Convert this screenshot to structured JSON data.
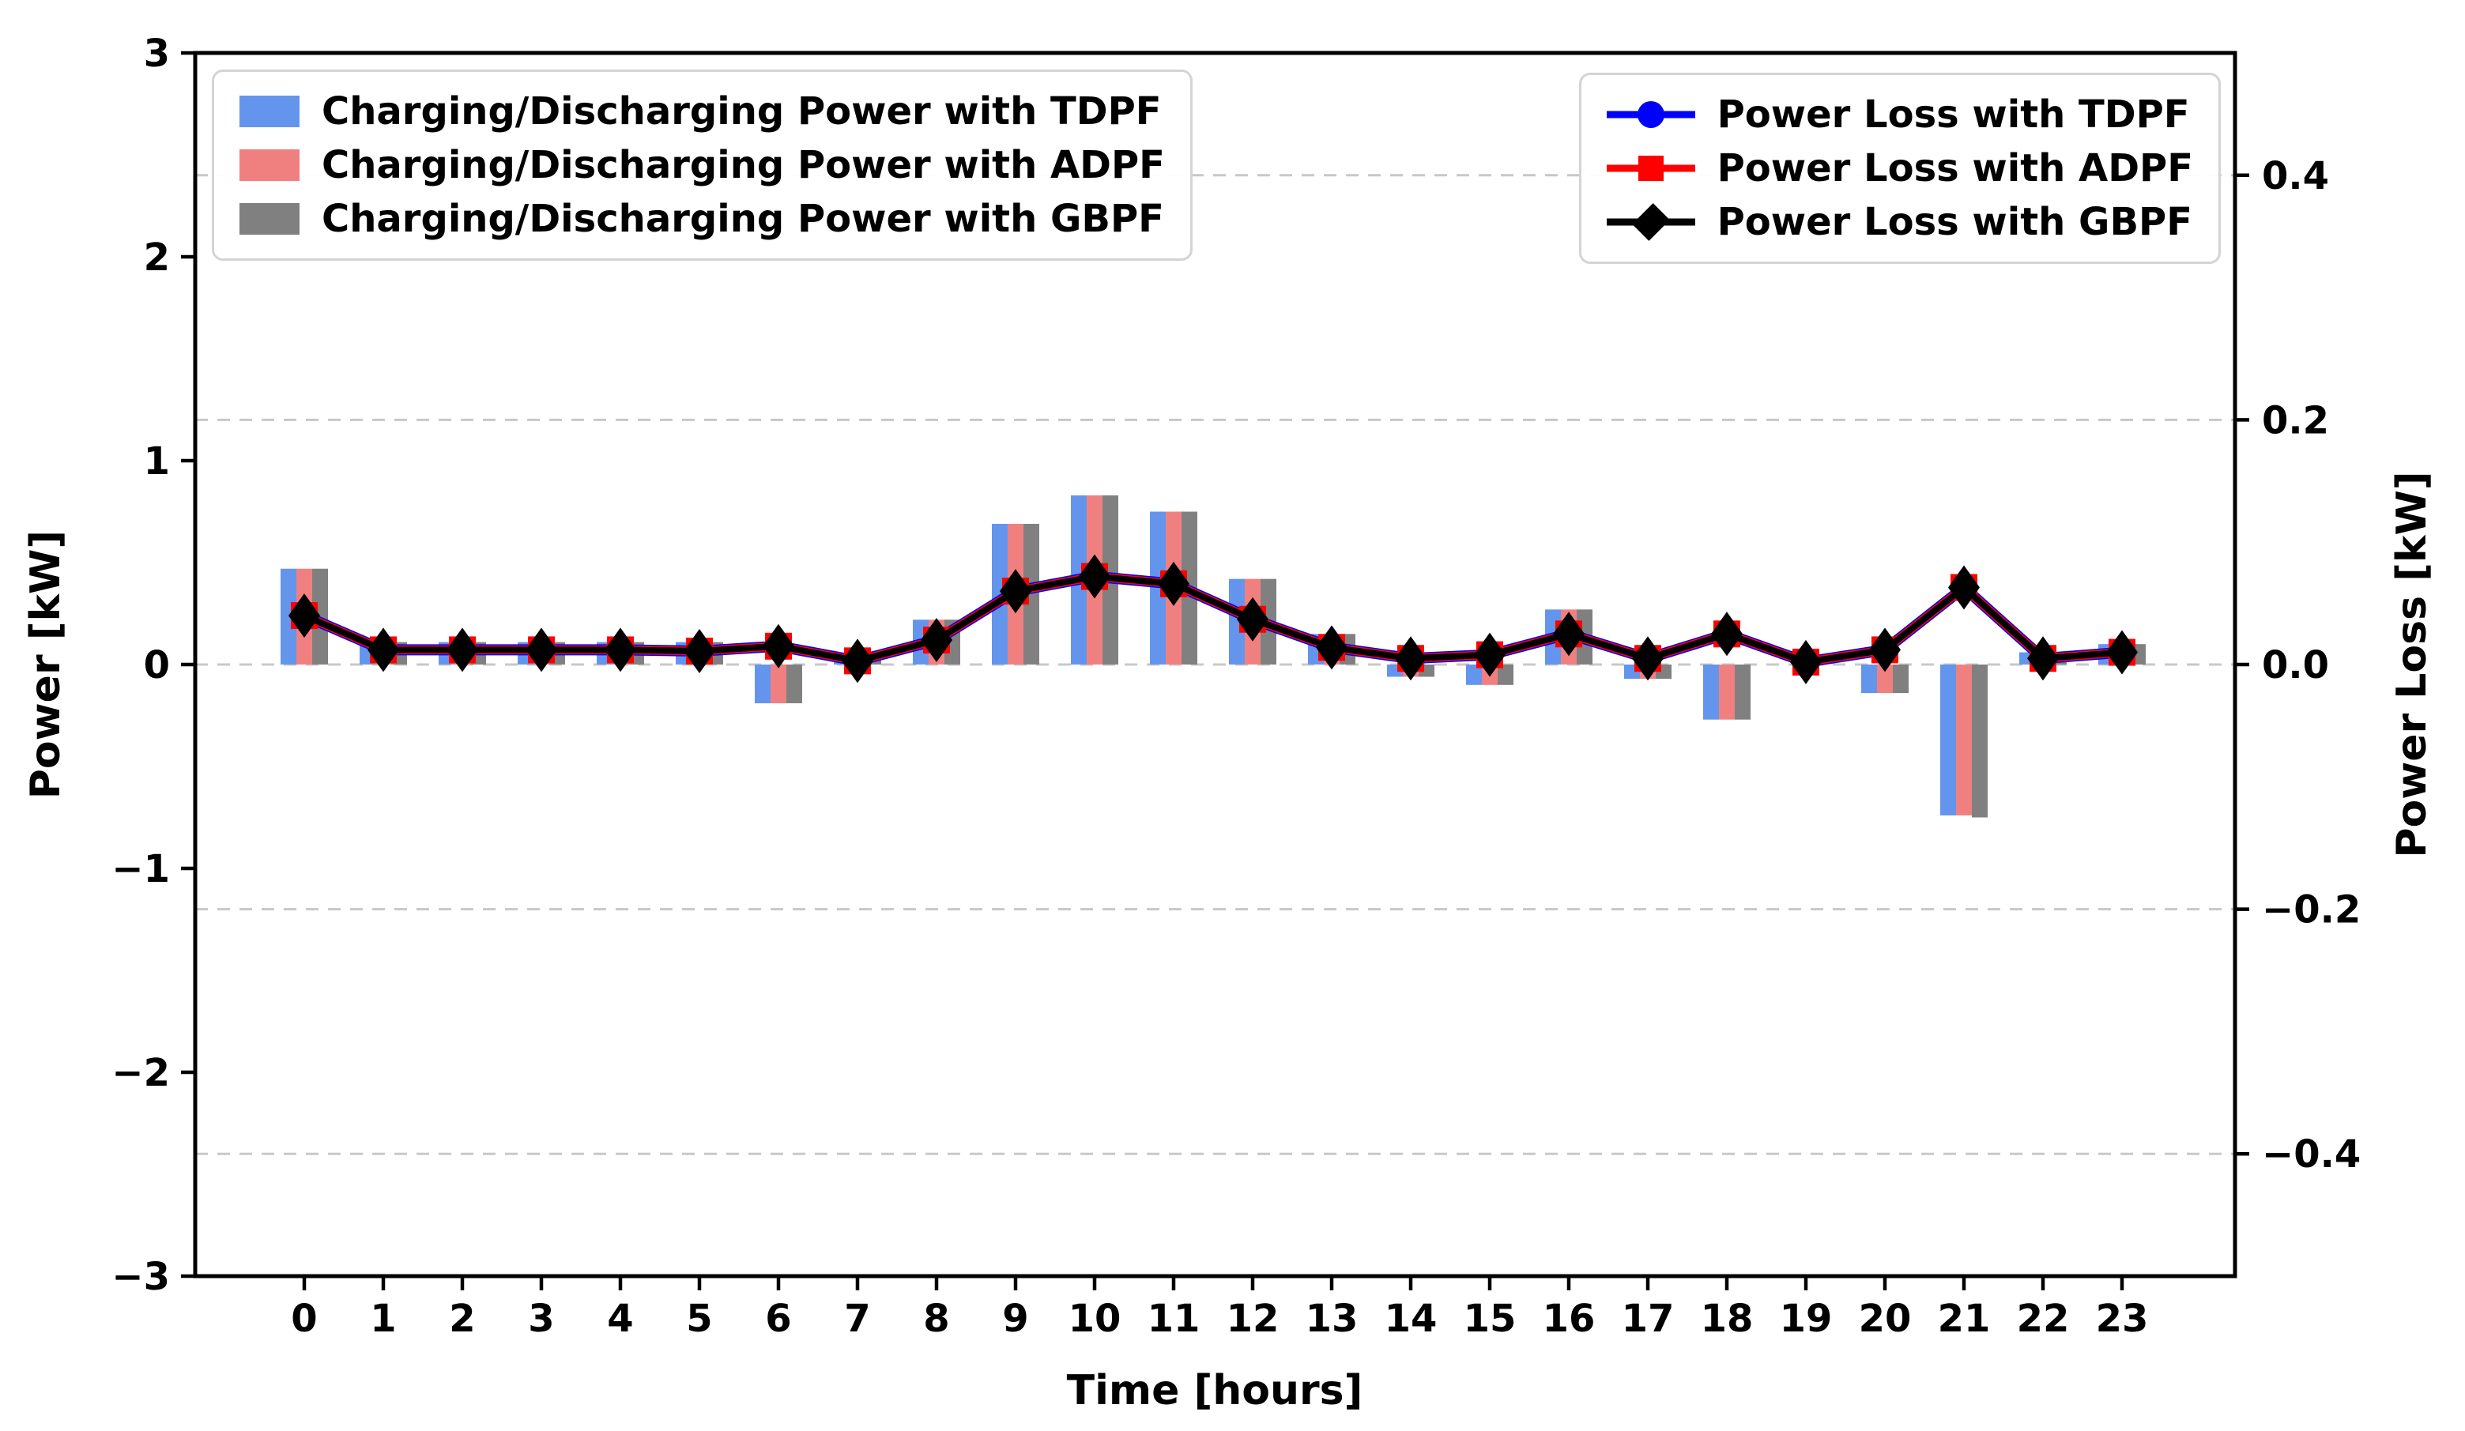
{
  "axes": {
    "x_label": "Time [hours]",
    "y_left_label": "Power [kW]",
    "y_right_label": "Power Loss [kW]",
    "x_ticks": [
      "0",
      "1",
      "2",
      "3",
      "4",
      "5",
      "6",
      "7",
      "8",
      "9",
      "10",
      "11",
      "12",
      "13",
      "14",
      "15",
      "16",
      "17",
      "18",
      "19",
      "20",
      "21",
      "22",
      "23"
    ],
    "y_left_ticks": [
      {
        "v": 3,
        "label": "3"
      },
      {
        "v": 2,
        "label": "2"
      },
      {
        "v": 1,
        "label": "1"
      },
      {
        "v": 0,
        "label": "0"
      },
      {
        "v": -1,
        "label": "−1"
      },
      {
        "v": -2,
        "label": "−2"
      },
      {
        "v": -3,
        "label": "−3"
      }
    ],
    "y_right_ticks": [
      {
        "v": 0.4,
        "label": "0.4"
      },
      {
        "v": 0.2,
        "label": "0.2"
      },
      {
        "v": 0.0,
        "label": "0.0"
      },
      {
        "v": -0.2,
        "label": "−0.2"
      },
      {
        "v": -0.4,
        "label": "−0.4"
      }
    ],
    "grid_color": "#c8c8c8",
    "spine_color": "#000000"
  },
  "chart_data": {
    "type": "bar+line",
    "categories": [
      0,
      1,
      2,
      3,
      4,
      5,
      6,
      7,
      8,
      9,
      10,
      11,
      12,
      13,
      14,
      15,
      16,
      17,
      18,
      19,
      20,
      21,
      22,
      23
    ],
    "xlabel": "Time [hours]",
    "ylabel_left": "Power [kW]",
    "ylabel_right": "Power Loss [kW]",
    "ylim_left": [
      -3,
      3
    ],
    "ylim_right": [
      -0.5,
      0.5
    ],
    "grid": "horizontal dashed lines at right-axis ticks 0.4, 0.2, 0.0, -0.2, -0.4",
    "legend_positions": [
      "upper left (bars)",
      "upper right (lines)"
    ],
    "bar_series": [
      {
        "name": "Charging/Discharging Power with TDPF",
        "color": "#6495ED",
        "values": [
          0.47,
          0.11,
          0.11,
          0.11,
          0.11,
          0.11,
          -0.19,
          0.02,
          0.22,
          0.69,
          0.83,
          0.75,
          0.42,
          0.15,
          -0.06,
          -0.1,
          0.27,
          -0.07,
          -0.27,
          0.0,
          -0.14,
          -0.74,
          0.06,
          0.1
        ]
      },
      {
        "name": "Charging/Discharging Power with ADPF",
        "color": "#F08080",
        "values": [
          0.47,
          0.11,
          0.11,
          0.11,
          0.11,
          0.11,
          -0.19,
          0.02,
          0.22,
          0.69,
          0.83,
          0.75,
          0.42,
          0.15,
          -0.06,
          -0.1,
          0.27,
          -0.07,
          -0.27,
          0.0,
          -0.14,
          -0.74,
          0.05,
          0.1
        ]
      },
      {
        "name": "Charging/Discharging Power with GBPF",
        "color": "#808080",
        "values": [
          0.47,
          0.11,
          0.11,
          0.11,
          0.11,
          0.11,
          -0.19,
          0.02,
          0.22,
          0.69,
          0.83,
          0.75,
          0.42,
          0.15,
          -0.06,
          -0.1,
          0.27,
          -0.07,
          -0.27,
          0.0,
          -0.14,
          -0.75,
          0.05,
          0.1
        ]
      }
    ],
    "line_series": [
      {
        "name": "Power Loss with TDPF",
        "color": "#0000FF",
        "marker": "circle",
        "values": [
          0.04,
          0.012,
          0.012,
          0.012,
          0.012,
          0.011,
          0.015,
          0.003,
          0.02,
          0.06,
          0.072,
          0.066,
          0.037,
          0.014,
          0.005,
          0.008,
          0.025,
          0.005,
          0.025,
          0.002,
          0.012,
          0.063,
          0.005,
          0.01
        ]
      },
      {
        "name": "Power Loss with ADPF",
        "color": "#FF0000",
        "marker": "square",
        "values": [
          0.04,
          0.012,
          0.012,
          0.012,
          0.012,
          0.011,
          0.015,
          0.003,
          0.02,
          0.06,
          0.072,
          0.066,
          0.037,
          0.014,
          0.005,
          0.008,
          0.025,
          0.005,
          0.025,
          0.002,
          0.012,
          0.063,
          0.005,
          0.01
        ]
      },
      {
        "name": "Power Loss with GBPF",
        "color": "#000000",
        "marker": "diamond",
        "values": [
          0.04,
          0.012,
          0.012,
          0.012,
          0.012,
          0.011,
          0.015,
          0.003,
          0.02,
          0.06,
          0.072,
          0.066,
          0.037,
          0.014,
          0.005,
          0.008,
          0.025,
          0.005,
          0.025,
          0.002,
          0.012,
          0.063,
          0.005,
          0.01
        ]
      }
    ]
  }
}
